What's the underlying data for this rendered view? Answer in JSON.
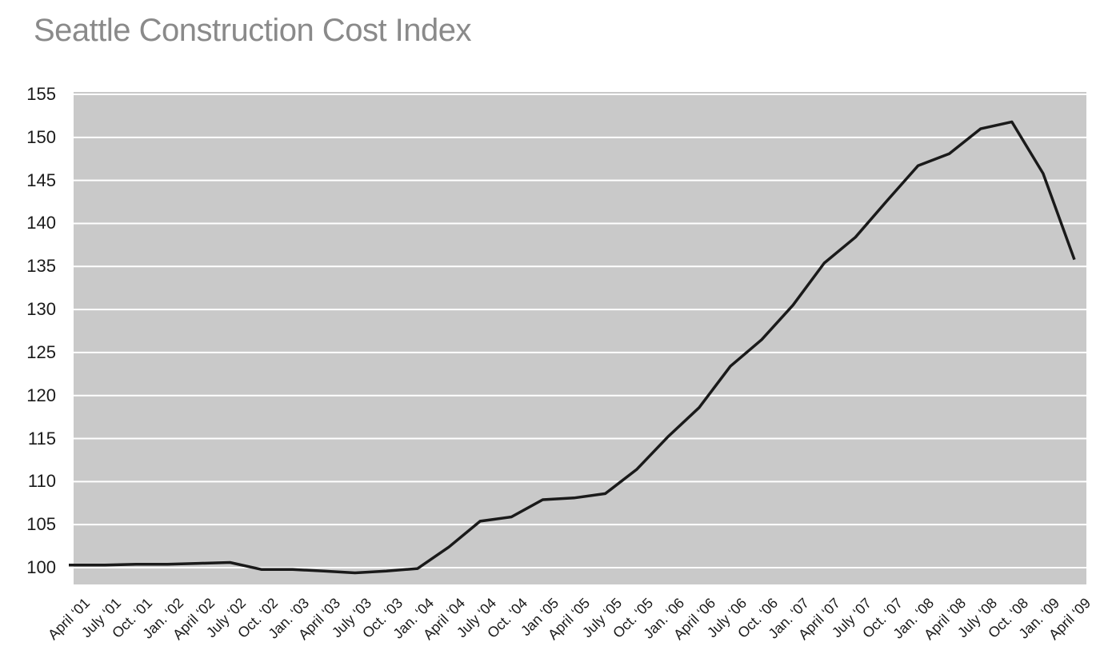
{
  "chart_data": {
    "type": "line",
    "title": "Seattle Construction Cost Index",
    "title_color": "#8a8a8a",
    "categories": [
      "April ‘01",
      "July ‘01",
      "Oct. ‘01",
      "Jan. ‘02",
      "April ‘02",
      "July ‘02",
      "Oct. ‘02",
      "Jan. ‘03",
      "April ‘03",
      "July ‘03",
      "Oct. ‘03",
      "Jan. ‘04",
      "April ‘04",
      "July ‘04",
      "Oct. ‘04",
      "Jan ‘05",
      "April ‘05",
      "July ‘05",
      "Oct. ‘05",
      "Jan. ‘06",
      "April ‘06",
      "July ‘06",
      "Oct. ‘06",
      "Jan. ‘07",
      "April ‘07",
      "July ‘07",
      "Oct. ‘07",
      "Jan. ‘08",
      "April ‘08",
      "July ‘08",
      "Oct. ‘08",
      "Jan. ‘09",
      "April ‘09"
    ],
    "values": [
      100.3,
      100.3,
      100.4,
      100.4,
      100.5,
      100.6,
      99.8,
      99.8,
      99.6,
      99.4,
      99.6,
      99.9,
      102.4,
      105.4,
      105.9,
      107.9,
      108.1,
      108.6,
      111.4,
      115.2,
      118.6,
      123.4,
      126.5,
      130.5,
      135.4,
      138.4,
      142.6,
      146.7,
      148.1,
      151.0,
      151.8,
      145.8,
      135.8
    ],
    "xlabel": "",
    "ylabel": "",
    "yticks": [
      100,
      105,
      110,
      115,
      120,
      125,
      130,
      135,
      140,
      145,
      150,
      155
    ],
    "ylim": [
      98,
      155.3
    ],
    "grid": "horizontal",
    "legend": "none",
    "line_color": "#1a1a1a",
    "line_width": 3.5,
    "plot_background": "#c9c9c9",
    "gridline_color": "#ffffff",
    "label_color": "#1a1a1a",
    "page_background": "#ffffff"
  }
}
